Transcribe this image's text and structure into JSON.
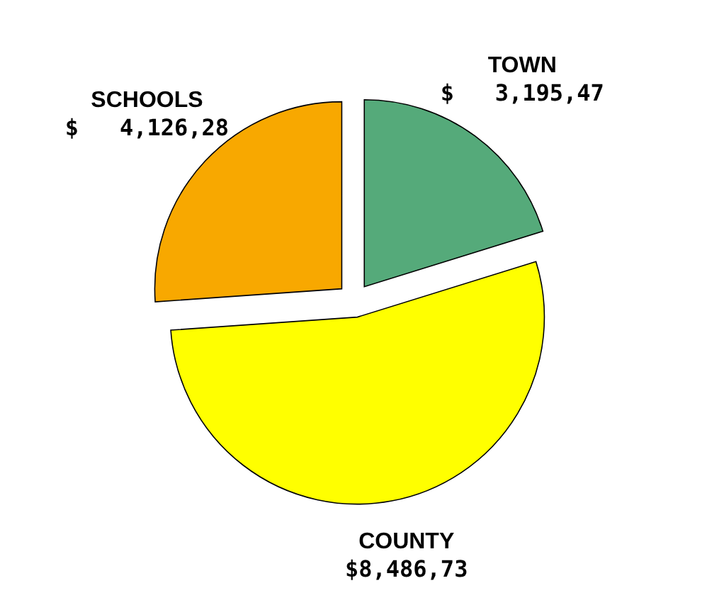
{
  "chart_data": {
    "type": "pie",
    "categories": [
      "TOWN",
      "COUNTY",
      "SCHOOLS"
    ],
    "values": [
      20.21,
      53.68,
      26.11
    ],
    "colors": [
      "#55aa7a",
      "#ffff00",
      "#f8a800"
    ],
    "value_labels": [
      "$   3,195,47",
      "$8,486,73",
      "$   4,126,28"
    ]
  }
}
